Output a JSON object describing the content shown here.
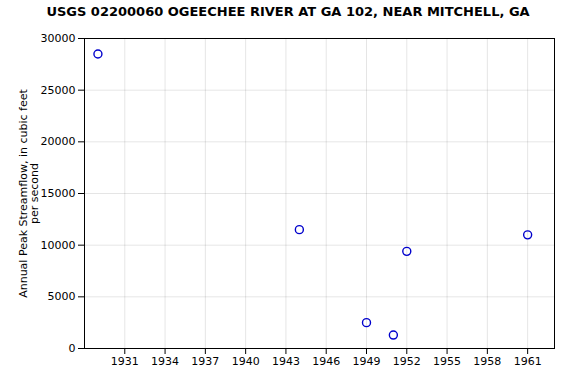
{
  "chart_data": {
    "type": "scatter",
    "title": "USGS 02200060 OGEECHEE RIVER AT GA 102, NEAR MITCHELL, GA",
    "ylabel": "Annual Peak Streamflow, in cubic feet\nper second",
    "x": [
      1929,
      1944,
      1949,
      1951,
      1952,
      1961
    ],
    "values": [
      28500,
      11500,
      2500,
      1300,
      9400,
      11000
    ],
    "color": "#0000cc",
    "marker": "o",
    "xlim": [
      1928,
      1963
    ],
    "ylim": [
      0,
      30000
    ],
    "xticks": [
      1931,
      1934,
      1937,
      1940,
      1943,
      1946,
      1949,
      1952,
      1955,
      1958,
      1961
    ],
    "yticks": [
      0,
      5000,
      10000,
      15000,
      20000,
      25000,
      30000
    ],
    "grid": true
  }
}
